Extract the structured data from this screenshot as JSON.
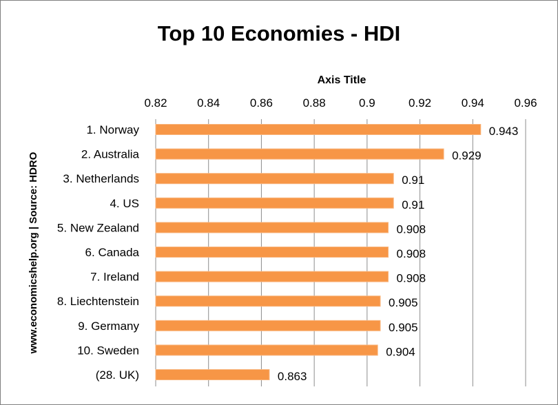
{
  "chart_data": {
    "type": "bar",
    "orientation": "horizontal",
    "title": "Top 10 Economies - HDI",
    "axis_title": "Axis Title",
    "side_label": "www.economicshelp.org | Source:  HDRO",
    "xlim": [
      0.82,
      0.96
    ],
    "x_ticks": [
      "0.82",
      "0.84",
      "0.86",
      "0.88",
      "0.9",
      "0.92",
      "0.94",
      "0.96"
    ],
    "x_tick_values": [
      0.82,
      0.84,
      0.86,
      0.88,
      0.9,
      0.92,
      0.94,
      0.96
    ],
    "categories": [
      "1. Norway",
      "2. Australia",
      "3. Netherlands",
      "4. US",
      "5.  New Zealand",
      "6. Canada",
      "7. Ireland",
      "8.  Liechtenstein",
      "9. Germany",
      "10. Sweden",
      "(28. UK)"
    ],
    "values": [
      0.943,
      0.929,
      0.91,
      0.91,
      0.908,
      0.908,
      0.908,
      0.905,
      0.905,
      0.904,
      0.863
    ],
    "value_labels": [
      "0.943",
      "0.929",
      "0.91",
      "0.91",
      "0.908",
      "0.908",
      "0.908",
      "0.905",
      "0.905",
      "0.904",
      "0.863"
    ],
    "grid": true,
    "gridlines": "vertical",
    "axis_position": "top",
    "bar_color": "#F79646",
    "bar_edge_color": "#F8B57D",
    "grid_color": "#8c8c8c"
  }
}
